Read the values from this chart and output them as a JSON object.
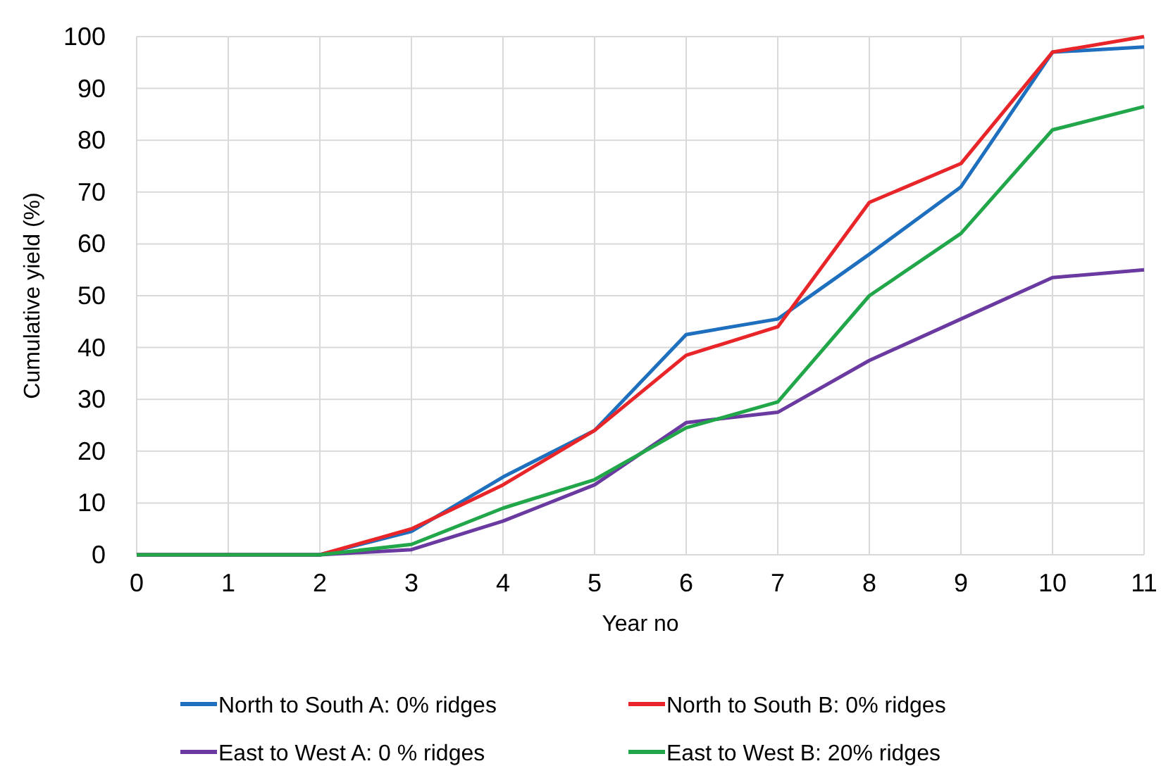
{
  "chart_data": {
    "type": "line",
    "xlabel": "Year no",
    "ylabel": "Cumulative yield (%)",
    "x": [
      0,
      1,
      2,
      3,
      4,
      5,
      6,
      7,
      8,
      9,
      10,
      11
    ],
    "series": [
      {
        "name": "North to South A: 0% ridges",
        "color": "#1f6fbf",
        "values": [
          0,
          0,
          0,
          4.5,
          15,
          24,
          42.5,
          45.5,
          58,
          71,
          97,
          98
        ]
      },
      {
        "name": "North to South B: 0% ridges",
        "color": "#e8262a",
        "values": [
          0,
          0,
          0,
          5,
          13.5,
          24,
          38.5,
          44,
          68,
          75.5,
          97,
          100
        ]
      },
      {
        "name": "East to West A: 0 % ridges",
        "color": "#6a3aa0",
        "values": [
          0,
          0,
          0,
          1,
          6.5,
          13.5,
          25.5,
          27.5,
          37.5,
          45.5,
          53.5,
          55
        ]
      },
      {
        "name": "East to West B: 20% ridges",
        "color": "#22a64a",
        "values": [
          0,
          0,
          0,
          2,
          9,
          14.5,
          24.5,
          29.5,
          50,
          62,
          82,
          86.5
        ]
      }
    ],
    "xlim": [
      0,
      11
    ],
    "xticks": [
      0,
      1,
      2,
      3,
      4,
      5,
      6,
      7,
      8,
      9,
      10,
      11
    ],
    "ylim": [
      0,
      100
    ],
    "yticks": [
      0,
      10,
      20,
      30,
      40,
      50,
      60,
      70,
      80,
      90,
      100
    ],
    "grid": true,
    "legend": "bottom",
    "marker": "none",
    "line_style": "solid"
  }
}
